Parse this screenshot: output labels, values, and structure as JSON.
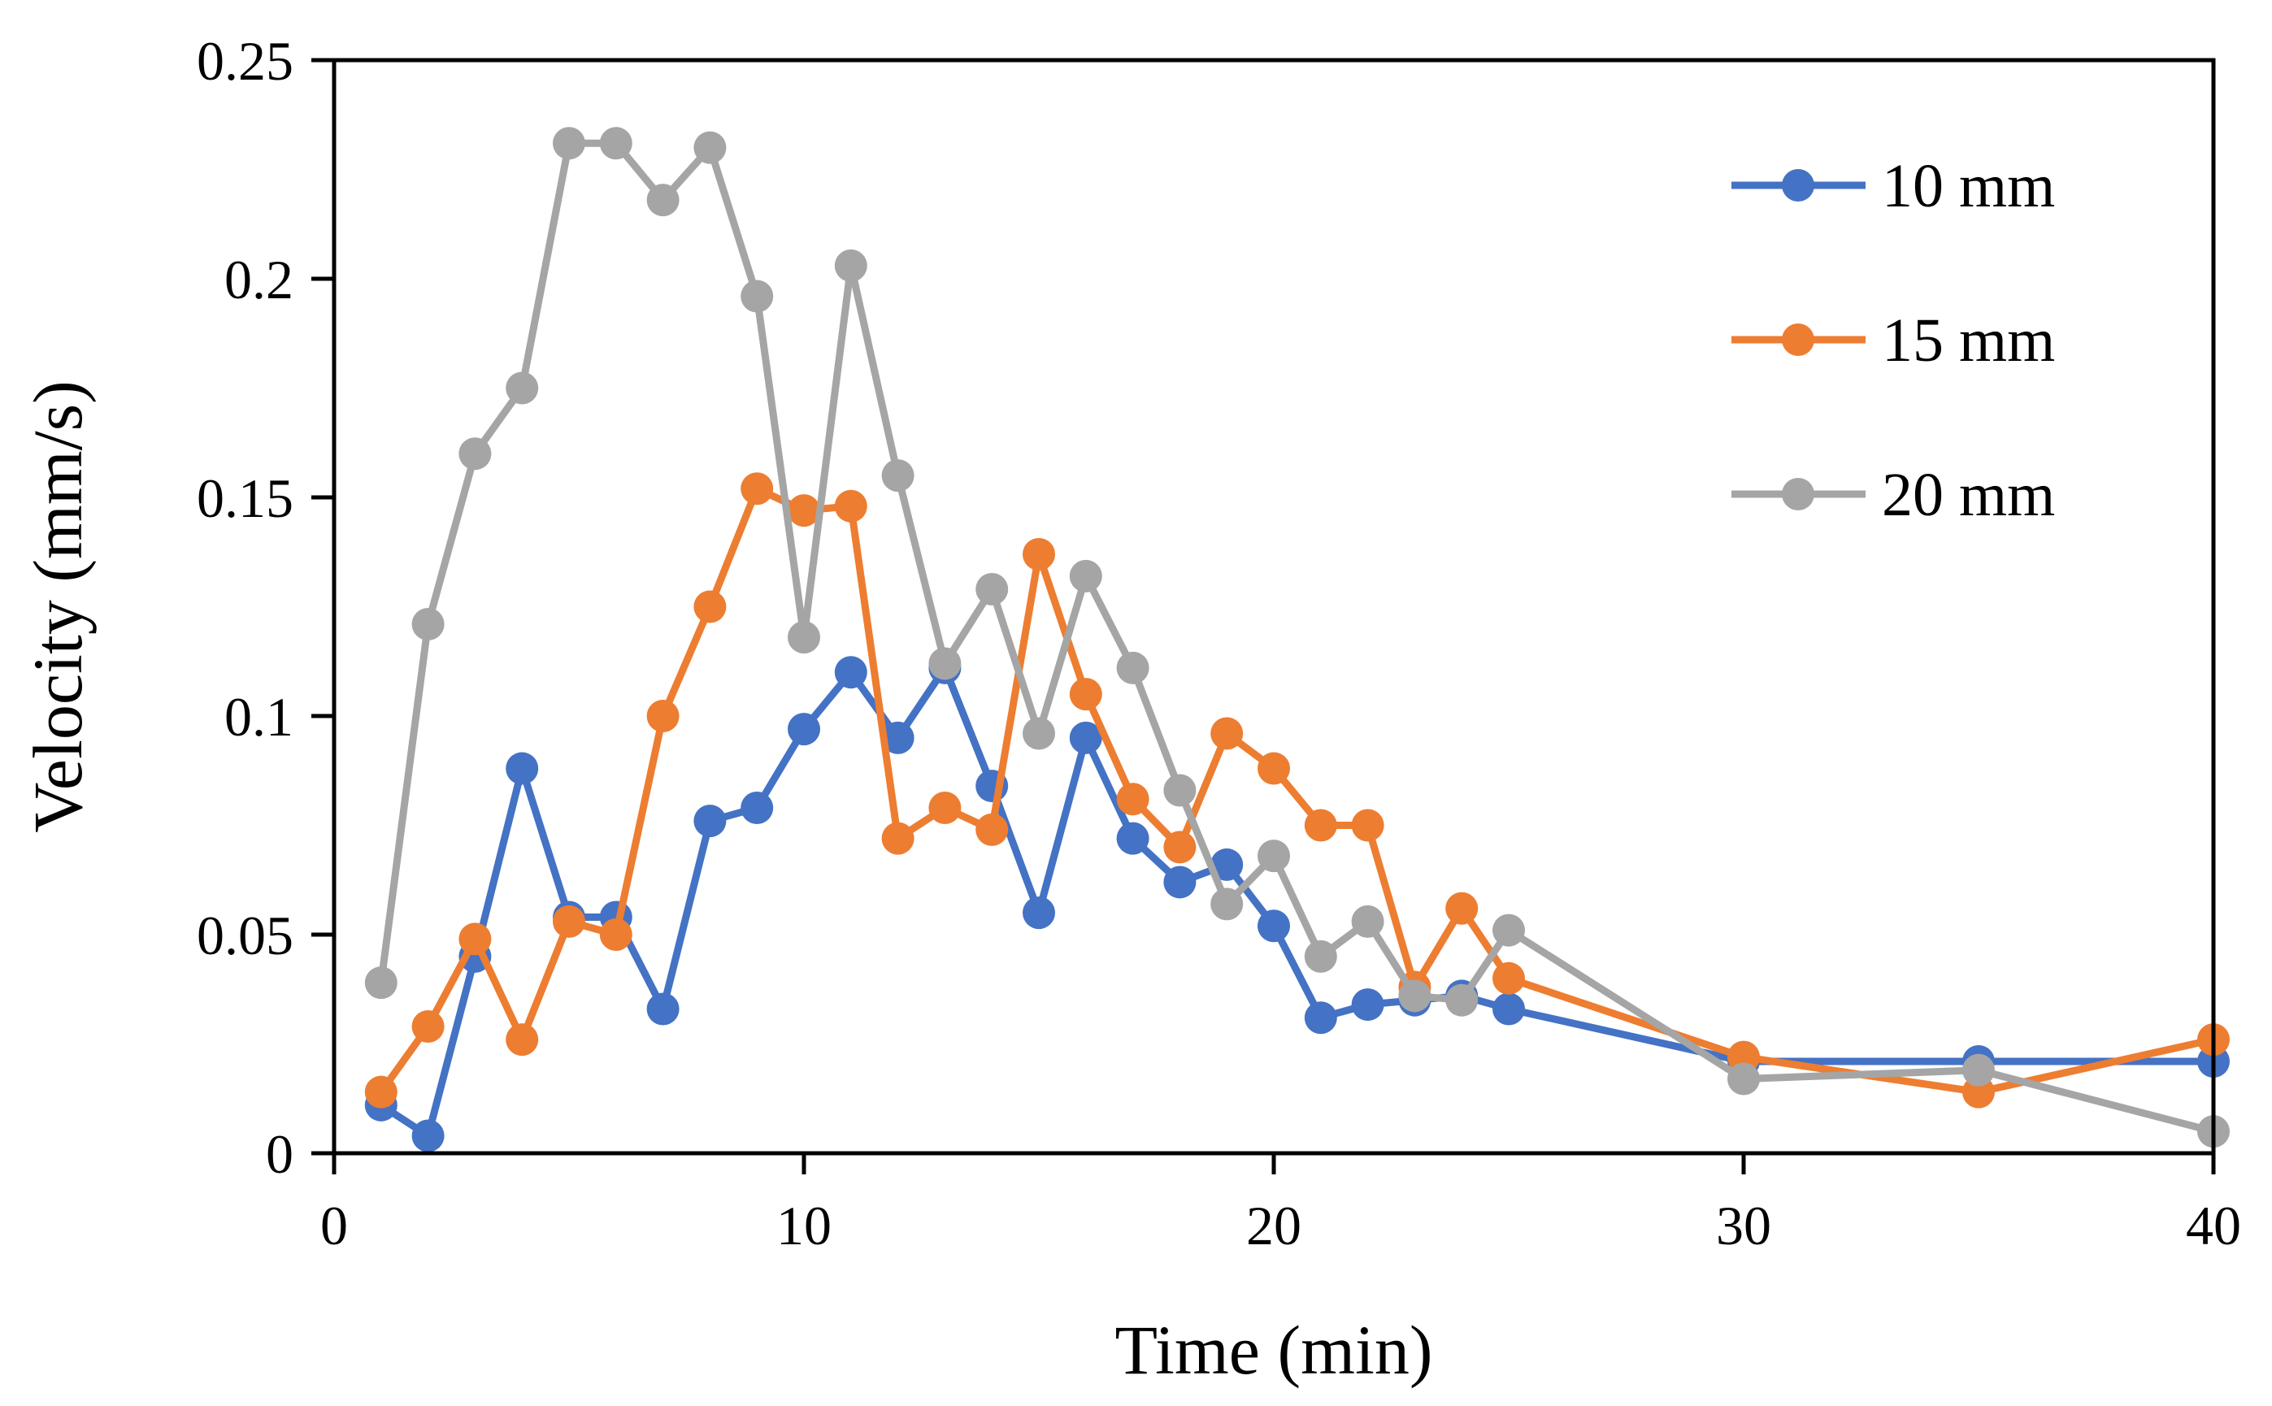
{
  "chart_data": {
    "type": "line",
    "title": "",
    "xlabel": "Time (min)",
    "ylabel": "Velocity (mm/s)",
    "xlim": [
      0,
      40
    ],
    "ylim": [
      0,
      0.25
    ],
    "xticks": [
      0,
      10,
      20,
      30,
      40
    ],
    "xtick_labels": [
      "0",
      "10",
      "20",
      "30",
      "40"
    ],
    "yticks": [
      0,
      0.05,
      0.1,
      0.15,
      0.2,
      0.25
    ],
    "ytick_labels": [
      "0",
      "0.05",
      "0.1",
      "0.15",
      "0.2",
      "0.25"
    ],
    "grid": false,
    "legend_position": "top-right",
    "x": [
      1,
      2,
      3,
      4,
      5,
      6,
      7,
      8,
      9,
      10,
      11,
      12,
      13,
      14,
      15,
      16,
      17,
      18,
      19,
      20,
      21,
      22,
      23,
      24,
      25,
      30,
      35,
      40
    ],
    "series": [
      {
        "name": "10 mm",
        "color": "#4472C4",
        "values": [
          0.011,
          0.004,
          0.045,
          0.088,
          0.054,
          0.054,
          0.033,
          0.076,
          0.079,
          0.097,
          0.11,
          0.095,
          0.111,
          0.084,
          0.055,
          0.095,
          0.072,
          0.062,
          0.066,
          0.052,
          0.031,
          0.034,
          0.035,
          0.036,
          0.033,
          0.021,
          0.021,
          0.021
        ]
      },
      {
        "name": "15 mm",
        "color": "#ED7D31",
        "values": [
          0.014,
          0.029,
          0.049,
          0.026,
          0.053,
          0.05,
          0.1,
          0.125,
          0.152,
          0.147,
          0.148,
          0.072,
          0.079,
          0.074,
          0.137,
          0.105,
          0.081,
          0.07,
          0.096,
          0.088,
          0.075,
          0.075,
          0.038,
          0.056,
          0.04,
          0.022,
          0.014,
          0.026
        ]
      },
      {
        "name": "20 mm",
        "color": "#A5A5A5",
        "values": [
          0.039,
          0.121,
          0.16,
          0.175,
          0.231,
          0.231,
          0.218,
          0.23,
          0.196,
          0.118,
          0.203,
          0.155,
          0.112,
          0.129,
          0.096,
          0.132,
          0.111,
          0.083,
          0.057,
          0.068,
          0.045,
          0.053,
          0.036,
          0.035,
          0.051,
          0.017,
          0.019,
          0.005
        ]
      }
    ]
  }
}
